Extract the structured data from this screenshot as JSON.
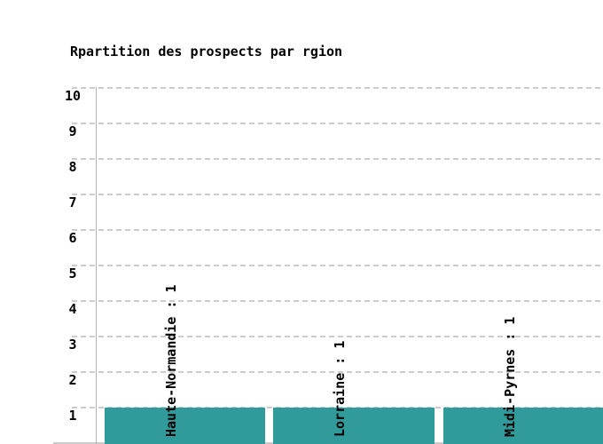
{
  "chart_data": {
    "type": "bar",
    "title": "Rpartition des prospects par rgion",
    "categories": [
      "Haute-Normandie",
      "Lorraine",
      "Midi-Pyrnes"
    ],
    "values": [
      1,
      1,
      1
    ],
    "bar_value_labels": [
      "Haute-Normandie : 1",
      "Lorraine : 1",
      "Midi-Pyrnes : 1"
    ],
    "xlabel": "",
    "ylabel": "",
    "ylim": [
      0,
      10
    ],
    "yticks": [
      1,
      2,
      3,
      4,
      5,
      6,
      7,
      8,
      9,
      10
    ],
    "grid": "horizontal-dashed",
    "legend": "none",
    "bar_label_orientation": "vertical-bottom-to-top",
    "cropped_edges": "right and bottom of plot are cut off by image frame",
    "colors": {
      "bar": "#319b9b",
      "grid": "#cccccc",
      "axis": "#b5b5b5",
      "text": "#000000",
      "background": "#ffffff"
    }
  }
}
